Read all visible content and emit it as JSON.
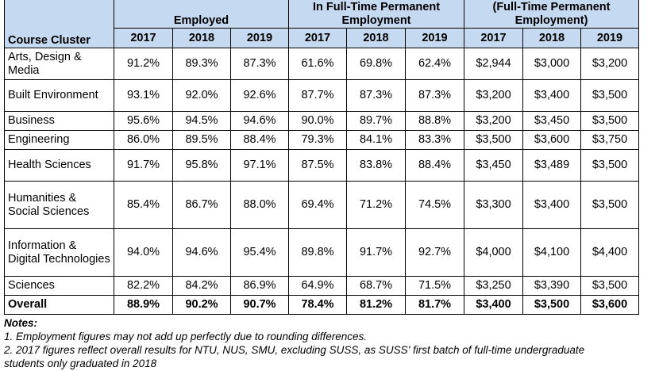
{
  "header": {
    "cluster_label": "Course Cluster",
    "groups": [
      "Employed",
      "In Full-Time Permanent Employment",
      "(Full-Time Permanent Employment)"
    ],
    "years": [
      "2017",
      "2018",
      "2019"
    ]
  },
  "rows": [
    {
      "cluster": "Arts, Design & Media",
      "values": [
        "91.2%",
        "89.3%",
        "87.3%",
        "61.6%",
        "69.8%",
        "62.4%",
        "$2,944",
        "$3,000",
        "$3,200"
      ]
    },
    {
      "cluster": "Built Environment",
      "values": [
        "93.1%",
        "92.0%",
        "92.6%",
        "87.7%",
        "87.3%",
        "87.3%",
        "$3,200",
        "$3,400",
        "$3,500"
      ]
    },
    {
      "cluster": "Business",
      "values": [
        "95.6%",
        "94.5%",
        "94.6%",
        "90.0%",
        "89.7%",
        "88.8%",
        "$3,200",
        "$3,450",
        "$3,500"
      ]
    },
    {
      "cluster": "Engineering",
      "values": [
        "86.0%",
        "89.5%",
        "88.4%",
        "79.3%",
        "84.1%",
        "83.3%",
        "$3,500",
        "$3,600",
        "$3,750"
      ]
    },
    {
      "cluster": "Health Sciences",
      "values": [
        "91.7%",
        "95.8%",
        "97.1%",
        "87.5%",
        "83.8%",
        "88.4%",
        "$3,450",
        "$3,489",
        "$3,500"
      ]
    },
    {
      "cluster": "Humanities & Social Sciences",
      "values": [
        "85.4%",
        "86.7%",
        "88.0%",
        "69.4%",
        "71.2%",
        "74.5%",
        "$3,300",
        "$3,400",
        "$3,500"
      ]
    },
    {
      "cluster": "Information & Digital Technologies",
      "values": [
        "94.0%",
        "94.6%",
        "95.4%",
        "89.8%",
        "91.7%",
        "92.7%",
        "$4,000",
        "$4,100",
        "$4,400"
      ]
    },
    {
      "cluster": "Sciences",
      "values": [
        "82.2%",
        "84.2%",
        "86.9%",
        "64.9%",
        "68.7%",
        "71.5%",
        "$3,250",
        "$3,390",
        "$3,500"
      ]
    }
  ],
  "overall": {
    "cluster": "Overall",
    "values": [
      "88.9%",
      "90.2%",
      "90.7%",
      "78.4%",
      "81.2%",
      "81.7%",
      "$3,400",
      "$3,500",
      "$3,600"
    ]
  },
  "notes": {
    "heading": "Notes:",
    "items": [
      "1. Employment figures may not add up perfectly due to rounding differences.",
      "2.  2017 figures reflect overall results for NTU, NUS, SMU, excluding SUSS, as SUSS' first batch of full-time undergraduate",
      "students only graduated in 2018"
    ]
  }
}
